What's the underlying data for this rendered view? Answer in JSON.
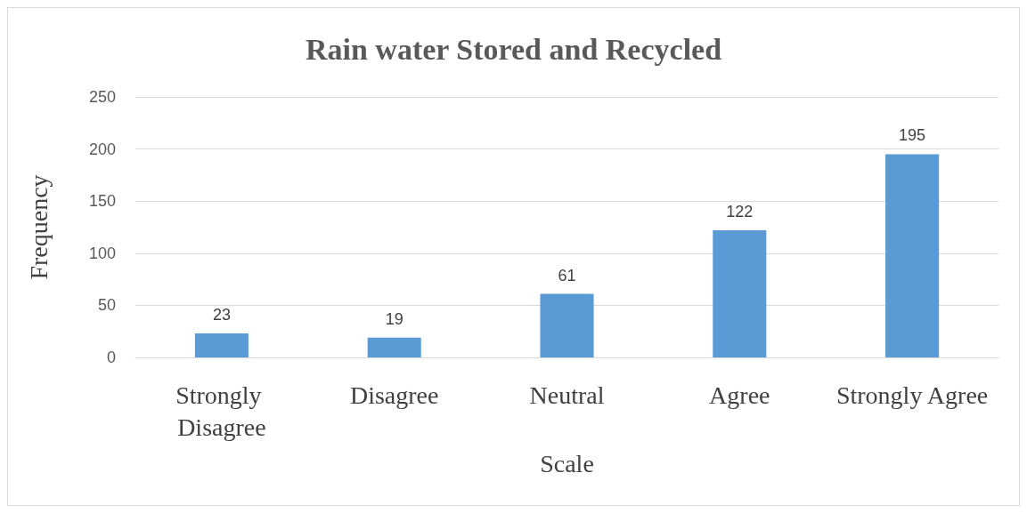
{
  "chart_data": {
    "type": "bar",
    "title": "Rain water Stored and Recycled",
    "xlabel": "Scale",
    "ylabel": "Frequency",
    "categories": [
      "Strongly Disagree",
      "Disagree",
      "Neutral",
      "Agree",
      "Strongly Agree"
    ],
    "values": [
      23,
      19,
      61,
      122,
      195
    ],
    "color": "#5b9bd5",
    "ylim": [
      0,
      250
    ],
    "yticks": [
      0,
      50,
      100,
      150,
      200,
      250
    ],
    "grid": "y",
    "data_labels": true
  }
}
